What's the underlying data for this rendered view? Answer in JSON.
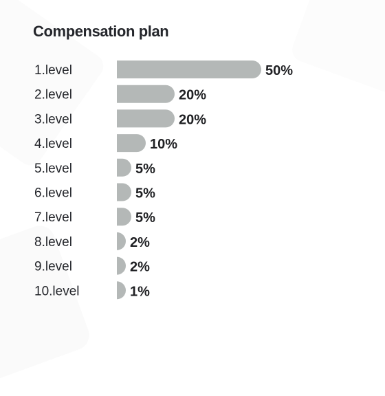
{
  "title": "Compensation plan",
  "colors": {
    "bar": "#b4b8b7",
    "text": "#24262b",
    "value_text": "#202124"
  },
  "chart_data": {
    "type": "bar",
    "orientation": "horizontal",
    "title": "Compensation plan",
    "xlabel": "",
    "ylabel": "",
    "categories": [
      "1.level",
      "2.level",
      "3.level",
      "4.level",
      "5.level",
      "6.level",
      "7.level",
      "8.level",
      "9.level",
      "10.level"
    ],
    "values": [
      50,
      20,
      20,
      10,
      5,
      5,
      5,
      2,
      2,
      1
    ],
    "value_labels": [
      "50%",
      "20%",
      "20%",
      "10%",
      "5%",
      "5%",
      "5%",
      "2%",
      "2%",
      "1%"
    ],
    "xlim": [
      0,
      50
    ],
    "grid": false,
    "legend": "none"
  }
}
